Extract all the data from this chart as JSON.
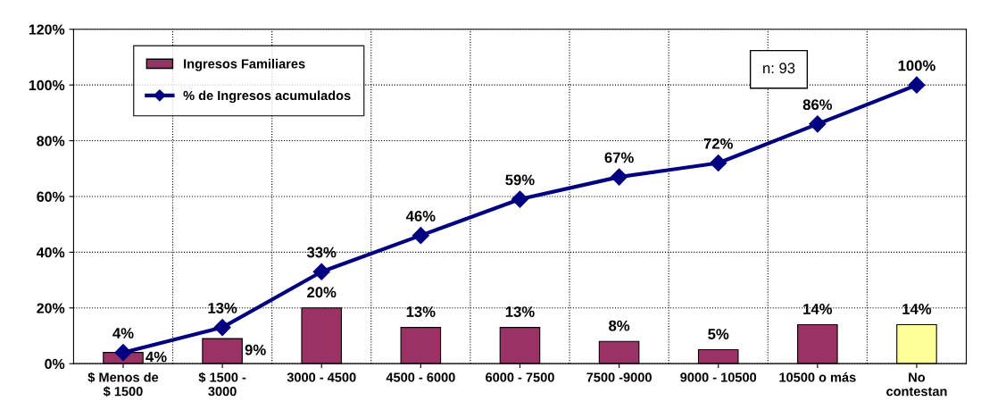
{
  "chart_data": {
    "type": "bar",
    "categories": [
      "$ Menos de\n$ 1500",
      "$ 1500 -\n3000",
      "3000 - 4500",
      "4500 - 6000",
      "6000 - 7500",
      "7500 -9000",
      "9000 - 10500",
      "10500 o más",
      "No\ncontestan"
    ],
    "series": [
      {
        "name": "Ingresos Familiares",
        "color": "#993366",
        "colors": [
          "#993366",
          "#993366",
          "#993366",
          "#993366",
          "#993366",
          "#993366",
          "#993366",
          "#993366",
          "#ffff99"
        ],
        "values": [
          4,
          9,
          20,
          13,
          13,
          8,
          5,
          14,
          14
        ],
        "value_labels": [
          "4%",
          "9%",
          "20%",
          "13%",
          "13%",
          "8%",
          "5%",
          "14%",
          "14%"
        ]
      },
      {
        "name": "% de Ingresos acumulados",
        "type": "line",
        "color": "#000080",
        "marker": "diamond",
        "values": [
          4,
          13,
          33,
          46,
          59,
          67,
          72,
          86,
          100
        ],
        "value_labels": [
          "4%",
          "13%",
          "33%",
          "46%",
          "59%",
          "67%",
          "72%",
          "86%",
          "100%"
        ]
      }
    ],
    "ylim": [
      0,
      120
    ],
    "yticks": [
      {
        "value": 0,
        "label": "0%"
      },
      {
        "value": 20,
        "label": "20%"
      },
      {
        "value": 40,
        "label": "40%"
      },
      {
        "value": 60,
        "label": "60%"
      },
      {
        "value": 80,
        "label": "80%"
      },
      {
        "value": 100,
        "label": "100%"
      },
      {
        "value": 120,
        "label": "120%"
      }
    ],
    "grid": true,
    "legend": "top left",
    "annotations": [
      "n: 93"
    ]
  }
}
